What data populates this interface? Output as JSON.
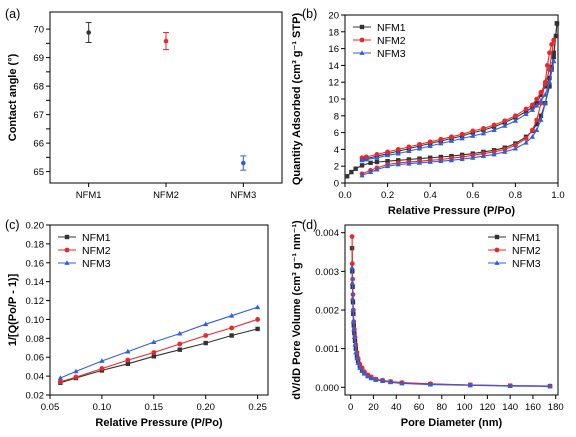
{
  "panel_labels": [
    "(a)",
    "(b)",
    "(c)",
    "(d)"
  ],
  "colors": {
    "NFM1": "#333333",
    "NFM2": "#e8282b",
    "NFM3": "#2f5fe0"
  },
  "chart_data": [
    {
      "id": "a",
      "type": "scatter",
      "xlabel": "",
      "ylabel": "Contact angle (°)",
      "categories": [
        "NFM1",
        "NFM2",
        "NFM3"
      ],
      "ylim": [
        64.6,
        70.6
      ],
      "yticks": [
        65,
        65.5,
        66,
        66.5,
        67,
        67.5,
        68,
        68.5,
        69,
        69.5,
        70
      ],
      "ytick_labels": [
        "65",
        "",
        "66",
        "",
        "67",
        "",
        "68",
        "",
        "69",
        "",
        "70"
      ],
      "series": [
        {
          "name": "NFM1",
          "value": 69.88,
          "error": 0.35,
          "color": "#333333"
        },
        {
          "name": "NFM2",
          "value": 69.58,
          "error": 0.3,
          "color": "#e8282b"
        },
        {
          "name": "NFM3",
          "value": 65.3,
          "error": 0.25,
          "color": "#2f5fe0"
        }
      ]
    },
    {
      "id": "b",
      "type": "line",
      "xlabel": "Relative Pressure (P/Po)",
      "ylabel": "Quantity Adsorbed (cm³ g⁻¹ STP)",
      "xlim": [
        0,
        1.0
      ],
      "ylim": [
        0,
        20
      ],
      "xticks": [
        0,
        0.2,
        0.4,
        0.6,
        0.8,
        1.0
      ],
      "xtick_labels": [
        "0.0",
        "0.2",
        "0.4",
        "0.6",
        "0.8",
        "1.0"
      ],
      "yticks": [
        0,
        2,
        4,
        6,
        8,
        10,
        12,
        14,
        16,
        18,
        20
      ],
      "legend": "top-left",
      "series": [
        {
          "name": "NFM1",
          "color": "#333333",
          "marker": "square",
          "adsorption": [
            [
              0.01,
              0.8
            ],
            [
              0.03,
              1.3
            ],
            [
              0.05,
              1.7
            ],
            [
              0.08,
              2.1
            ],
            [
              0.12,
              2.4
            ],
            [
              0.15,
              2.5
            ],
            [
              0.2,
              2.6
            ],
            [
              0.25,
              2.7
            ],
            [
              0.3,
              2.8
            ],
            [
              0.35,
              2.9
            ],
            [
              0.4,
              3.0
            ],
            [
              0.45,
              3.1
            ],
            [
              0.5,
              3.2
            ],
            [
              0.55,
              3.35
            ],
            [
              0.6,
              3.5
            ],
            [
              0.65,
              3.7
            ],
            [
              0.7,
              3.9
            ],
            [
              0.75,
              4.2
            ],
            [
              0.8,
              4.7
            ],
            [
              0.85,
              5.5
            ],
            [
              0.88,
              6.2
            ],
            [
              0.9,
              7.0
            ],
            [
              0.92,
              8.0
            ],
            [
              0.94,
              9.5
            ],
            [
              0.96,
              11.5
            ],
            [
              0.97,
              13.5
            ],
            [
              0.98,
              15.5
            ],
            [
              0.99,
              17.5
            ],
            [
              0.995,
              19.0
            ]
          ],
          "desorption": [
            [
              0.995,
              19.0
            ],
            [
              0.98,
              15.0
            ],
            [
              0.97,
              13.8
            ],
            [
              0.96,
              12.5
            ],
            [
              0.94,
              11.5
            ],
            [
              0.92,
              10.5
            ],
            [
              0.9,
              9.5
            ],
            [
              0.88,
              9.0
            ],
            [
              0.85,
              8.5
            ],
            [
              0.8,
              7.8
            ],
            [
              0.75,
              7.2
            ],
            [
              0.7,
              6.7
            ],
            [
              0.65,
              6.3
            ],
            [
              0.6,
              6.0
            ],
            [
              0.55,
              5.6
            ],
            [
              0.5,
              5.3
            ],
            [
              0.45,
              5.0
            ],
            [
              0.4,
              4.7
            ],
            [
              0.35,
              4.4
            ],
            [
              0.3,
              4.1
            ],
            [
              0.25,
              3.8
            ],
            [
              0.2,
              3.5
            ],
            [
              0.15,
              3.2
            ],
            [
              0.1,
              2.9
            ],
            [
              0.08,
              2.8
            ]
          ]
        },
        {
          "name": "NFM2",
          "color": "#e8282b",
          "marker": "circle",
          "adsorption": [
            [
              0.08,
              1.1
            ],
            [
              0.12,
              1.5
            ],
            [
              0.15,
              1.8
            ],
            [
              0.2,
              2.2
            ],
            [
              0.25,
              2.4
            ],
            [
              0.3,
              2.5
            ],
            [
              0.35,
              2.6
            ],
            [
              0.4,
              2.7
            ],
            [
              0.45,
              2.8
            ],
            [
              0.5,
              2.95
            ],
            [
              0.55,
              3.1
            ],
            [
              0.6,
              3.3
            ],
            [
              0.65,
              3.5
            ],
            [
              0.7,
              3.7
            ],
            [
              0.75,
              4.0
            ],
            [
              0.8,
              4.5
            ],
            [
              0.85,
              5.3
            ],
            [
              0.88,
              6.3
            ],
            [
              0.9,
              7.5
            ],
            [
              0.92,
              9.5
            ],
            [
              0.94,
              12.0
            ],
            [
              0.95,
              14.0
            ],
            [
              0.96,
              15.5
            ],
            [
              0.97,
              16.5
            ],
            [
              0.98,
              17.0
            ]
          ],
          "desorption": [
            [
              0.98,
              17.0
            ],
            [
              0.96,
              13.5
            ],
            [
              0.94,
              11.8
            ],
            [
              0.92,
              10.8
            ],
            [
              0.9,
              10.0
            ],
            [
              0.88,
              9.3
            ],
            [
              0.85,
              8.8
            ],
            [
              0.8,
              8.0
            ],
            [
              0.75,
              7.4
            ],
            [
              0.7,
              6.9
            ],
            [
              0.65,
              6.5
            ],
            [
              0.6,
              6.2
            ],
            [
              0.55,
              5.8
            ],
            [
              0.5,
              5.5
            ],
            [
              0.45,
              5.2
            ],
            [
              0.4,
              4.9
            ],
            [
              0.35,
              4.6
            ],
            [
              0.3,
              4.3
            ],
            [
              0.25,
              4.0
            ],
            [
              0.2,
              3.7
            ],
            [
              0.15,
              3.4
            ],
            [
              0.1,
              3.1
            ],
            [
              0.08,
              3.0
            ]
          ]
        },
        {
          "name": "NFM3",
          "color": "#2f5fe0",
          "marker": "triangle",
          "adsorption": [
            [
              0.08,
              0.9
            ],
            [
              0.12,
              1.3
            ],
            [
              0.15,
              1.6
            ],
            [
              0.2,
              2.0
            ],
            [
              0.25,
              2.2
            ],
            [
              0.3,
              2.3
            ],
            [
              0.35,
              2.4
            ],
            [
              0.4,
              2.5
            ],
            [
              0.45,
              2.6
            ],
            [
              0.5,
              2.7
            ],
            [
              0.55,
              2.85
            ],
            [
              0.6,
              3.0
            ],
            [
              0.65,
              3.2
            ],
            [
              0.7,
              3.4
            ],
            [
              0.75,
              3.7
            ],
            [
              0.8,
              4.1
            ],
            [
              0.85,
              4.8
            ],
            [
              0.88,
              5.5
            ],
            [
              0.9,
              6.3
            ],
            [
              0.92,
              7.5
            ],
            [
              0.94,
              9.5
            ],
            [
              0.96,
              12.0
            ],
            [
              0.97,
              13.5
            ],
            [
              0.98,
              14.5
            ]
          ],
          "desorption": [
            [
              0.98,
              14.5
            ],
            [
              0.96,
              12.0
            ],
            [
              0.94,
              10.5
            ],
            [
              0.92,
              9.8
            ],
            [
              0.9,
              9.2
            ],
            [
              0.88,
              8.7
            ],
            [
              0.85,
              8.2
            ],
            [
              0.8,
              7.4
            ],
            [
              0.75,
              6.8
            ],
            [
              0.7,
              6.3
            ],
            [
              0.65,
              5.9
            ],
            [
              0.6,
              5.6
            ],
            [
              0.55,
              5.3
            ],
            [
              0.5,
              5.0
            ],
            [
              0.45,
              4.7
            ],
            [
              0.4,
              4.4
            ],
            [
              0.35,
              4.1
            ],
            [
              0.3,
              3.8
            ],
            [
              0.25,
              3.5
            ],
            [
              0.2,
              3.3
            ],
            [
              0.15,
              3.0
            ],
            [
              0.1,
              2.8
            ],
            [
              0.08,
              2.7
            ]
          ]
        }
      ]
    },
    {
      "id": "c",
      "type": "line",
      "xlabel": "Relative Pressure (P/Po)",
      "ylabel": "1/[Q(Po/P - 1)]",
      "xlim": [
        0.05,
        0.26
      ],
      "ylim": [
        0.02,
        0.2
      ],
      "xticks": [
        0.05,
        0.1,
        0.15,
        0.2,
        0.25
      ],
      "xtick_labels": [
        "0.05",
        "0.10",
        "0.15",
        "0.20",
        "0.25"
      ],
      "yticks": [
        0.02,
        0.04,
        0.06,
        0.08,
        0.1,
        0.12,
        0.14,
        0.16,
        0.18,
        0.2
      ],
      "ytick_labels": [
        "0.02",
        "0.04",
        "0.06",
        "0.08",
        "0.10",
        "0.12",
        "0.14",
        "0.16",
        "0.18",
        "0.20"
      ],
      "legend": "top-left",
      "x": [
        0.06,
        0.075,
        0.1,
        0.125,
        0.15,
        0.175,
        0.2,
        0.225,
        0.25
      ],
      "series": [
        {
          "name": "NFM1",
          "color": "#333333",
          "marker": "square",
          "values": [
            0.033,
            0.038,
            0.046,
            0.053,
            0.061,
            0.068,
            0.075,
            0.083,
            0.09
          ]
        },
        {
          "name": "NFM2",
          "color": "#e8282b",
          "marker": "circle",
          "values": [
            0.034,
            0.039,
            0.048,
            0.057,
            0.065,
            0.074,
            0.083,
            0.091,
            0.1
          ]
        },
        {
          "name": "NFM3",
          "color": "#2f5fe0",
          "marker": "triangle",
          "values": [
            0.038,
            0.045,
            0.056,
            0.066,
            0.076,
            0.085,
            0.095,
            0.104,
            0.113
          ]
        }
      ]
    },
    {
      "id": "d",
      "type": "line",
      "xlabel": "Pore Diameter (nm)",
      "ylabel": "dV/dD Pore Volume (cm³ g⁻¹ nm⁻¹)",
      "xlim": [
        -5,
        182
      ],
      "ylim": [
        -0.0002,
        0.0042
      ],
      "xticks": [
        0,
        20,
        40,
        60,
        80,
        100,
        120,
        140,
        160,
        180
      ],
      "yticks": [
        0,
        0.001,
        0.002,
        0.003,
        0.004
      ],
      "ytick_labels": [
        "0.000",
        "0.001",
        "0.002",
        "0.003",
        "0.004"
      ],
      "legend": "top-right",
      "series": [
        {
          "name": "NFM1",
          "color": "#333333",
          "marker": "square",
          "x": [
            1.2,
            1.4,
            1.7,
            2,
            2.3,
            2.7,
            3.2,
            3.8,
            4.5,
            5.5,
            6.5,
            8,
            10,
            12,
            15,
            18,
            22,
            28,
            35,
            45,
            70,
            105,
            140,
            175
          ],
          "values": [
            0.0036,
            0.003,
            0.0026,
            0.0022,
            0.0019,
            0.0016,
            0.0014,
            0.0012,
            0.001,
            0.0008,
            0.00068,
            0.00055,
            0.00045,
            0.00038,
            0.0003,
            0.00025,
            0.0002,
            0.00017,
            0.00014,
            0.00011,
            8e-05,
            6e-05,
            4e-05,
            3e-05
          ]
        },
        {
          "name": "NFM2",
          "color": "#e8282b",
          "marker": "circle",
          "x": [
            1.2,
            1.4,
            1.7,
            2,
            2.3,
            2.7,
            3.2,
            3.8,
            4.5,
            5.5,
            6.5,
            8,
            10,
            12,
            15,
            18,
            22,
            28,
            35,
            45,
            70,
            105,
            140,
            175
          ],
          "values": [
            0.0039,
            0.0032,
            0.0028,
            0.0024,
            0.002,
            0.0017,
            0.0015,
            0.0013,
            0.0011,
            0.0009,
            0.00075,
            0.0006,
            0.0005,
            0.0004,
            0.00032,
            0.00027,
            0.00021,
            0.00018,
            0.00015,
            0.00012,
            9e-05,
            6e-05,
            4e-05,
            3e-05
          ]
        },
        {
          "name": "NFM3",
          "color": "#2f5fe0",
          "marker": "triangle",
          "x": [
            1.2,
            1.4,
            1.7,
            2,
            2.3,
            2.7,
            3.2,
            3.8,
            4.5,
            5.5,
            6.5,
            8,
            10,
            12,
            15,
            18,
            22,
            28,
            35,
            45,
            70,
            105,
            140,
            175
          ],
          "values": [
            0.0031,
            0.0027,
            0.0023,
            0.002,
            0.0017,
            0.0015,
            0.0013,
            0.0011,
            0.0009,
            0.00075,
            0.00063,
            0.0005,
            0.00042,
            0.00035,
            0.00028,
            0.00023,
            0.00019,
            0.00016,
            0.00013,
            0.0001,
            7e-05,
            5e-05,
            3e-05,
            2e-05
          ]
        }
      ]
    }
  ]
}
